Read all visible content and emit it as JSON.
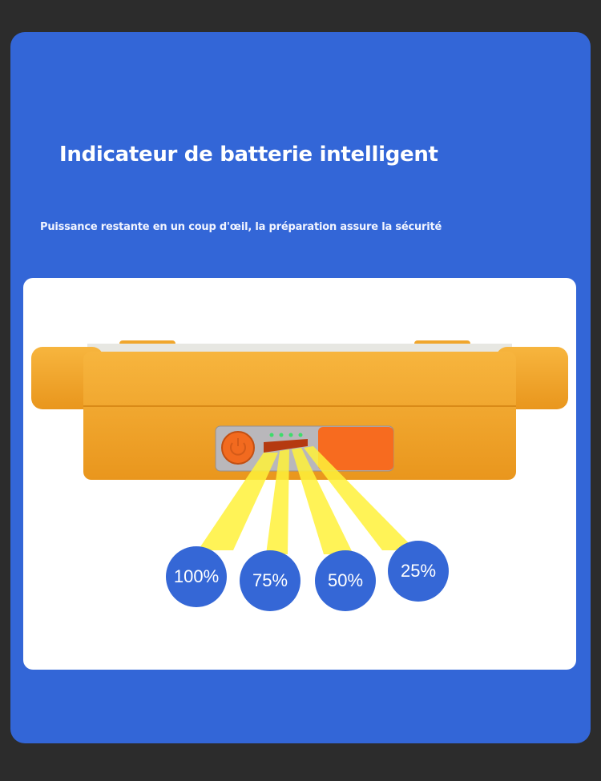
{
  "title": "Indicateur de batterie intelligent",
  "subtitle": "Puissance restante en un coup d'œil, la préparation assure la sécurité",
  "levels": [
    "100%",
    "75%",
    "50%",
    "25%"
  ],
  "colors": {
    "background": "#3366d7",
    "badge": "#3567d6",
    "device": "#f0a62c",
    "beam": "#fff23a",
    "led": "#3ddc6a"
  }
}
